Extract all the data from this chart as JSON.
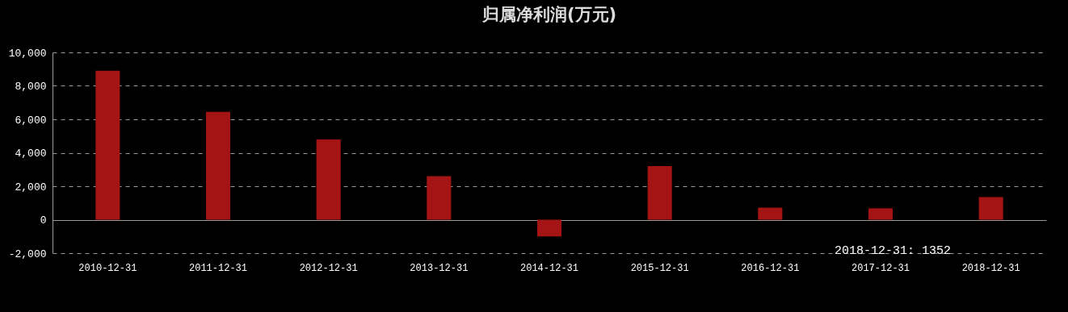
{
  "chart_data": {
    "type": "bar",
    "title": "归属净利润(万元)",
    "categories": [
      "2010-12-31",
      "2011-12-31",
      "2012-12-31",
      "2013-12-31",
      "2014-12-31",
      "2015-12-31",
      "2016-12-31",
      "2017-12-31",
      "2018-12-31"
    ],
    "values": [
      8900,
      6450,
      4800,
      2600,
      -1000,
      3200,
      720,
      680,
      1352
    ],
    "color": "#a51414",
    "ylim": [
      -2000,
      10000
    ],
    "yticks": [
      {
        "value": -2000,
        "label": "-2,000"
      },
      0,
      {
        "value": 2000,
        "label": "2,000"
      },
      {
        "value": 4000,
        "label": "4,000"
      },
      {
        "value": 6000,
        "label": "6,000"
      },
      {
        "value": 8000,
        "label": "8,000"
      },
      {
        "value": 10000,
        "label": "10,000"
      }
    ],
    "grid": "y",
    "annotations": [
      "2018-12-31: 1352"
    ]
  }
}
